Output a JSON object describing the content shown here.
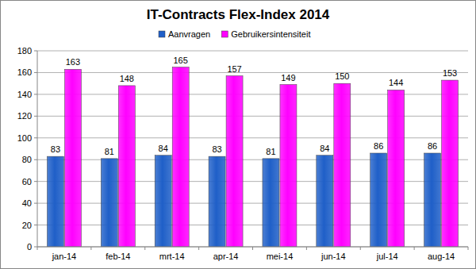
{
  "chart_data": {
    "type": "bar",
    "title": "IT-Contracts Flex-Index 2014",
    "categories": [
      "jan-14",
      "feb-14",
      "mrt-14",
      "apr-14",
      "mei-14",
      "jun-14",
      "jul-14",
      "aug-14"
    ],
    "series": [
      {
        "name": "Aanvragen",
        "color": "#1f5fc8",
        "values": [
          83,
          81,
          84,
          83,
          81,
          84,
          86,
          86
        ]
      },
      {
        "name": "Gebruikersintensiteit",
        "color": "#ff00ff",
        "values": [
          163,
          148,
          165,
          157,
          149,
          150,
          144,
          153
        ]
      }
    ],
    "ylim": [
      0,
      180
    ],
    "yticks": [
      0,
      20,
      40,
      60,
      80,
      100,
      120,
      140,
      160,
      180
    ],
    "grid": true,
    "legend": "top",
    "data_labels": true
  }
}
